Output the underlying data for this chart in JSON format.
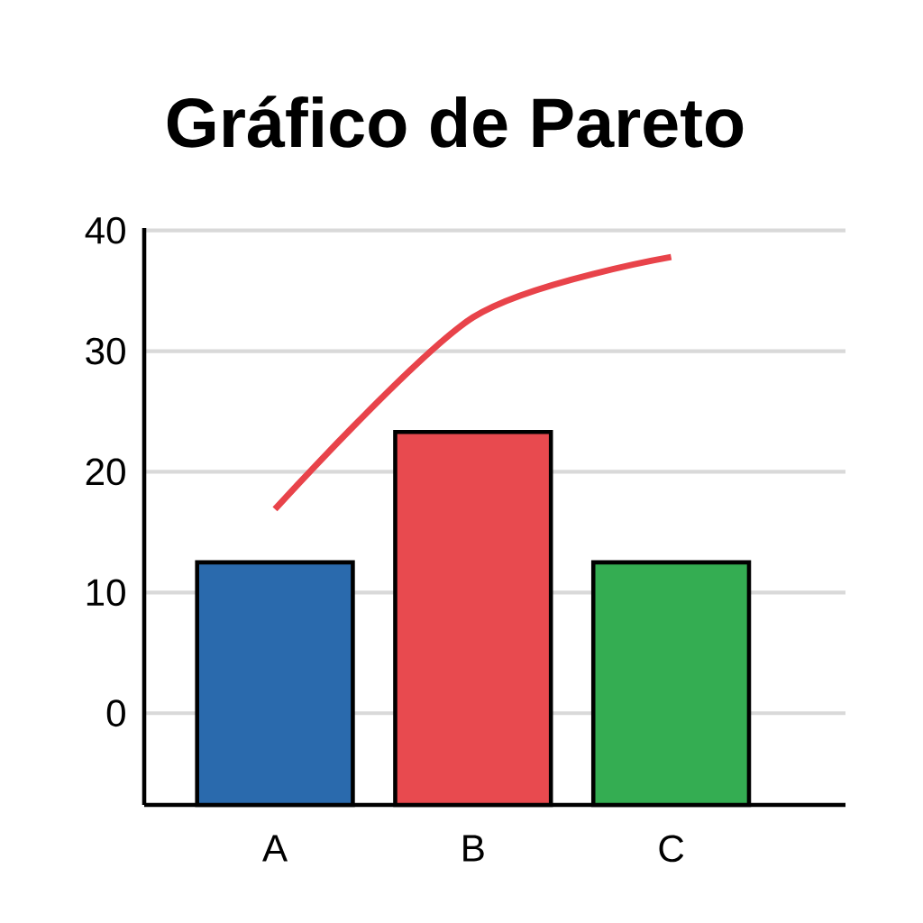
{
  "chart_data": {
    "type": "bar",
    "title": "Gráfico de Pareto",
    "categories": [
      "A",
      "B",
      "C"
    ],
    "series": [
      {
        "colors": [
          "#2a6aad",
          "#e84a4f",
          "#34ad52"
        ],
        "base": [
          -7.6,
          -7.6,
          -7.6
        ],
        "values": [
          20.1,
          30.9,
          20.1
        ]
      },
      {
        "type": "line",
        "color": "#e8434a",
        "values": [
          16.9,
          32.8,
          37.8
        ]
      }
    ],
    "ylim": [
      -7.6,
      40.2
    ],
    "yticks": [
      0,
      10,
      20,
      30,
      40
    ],
    "grid": "y"
  }
}
